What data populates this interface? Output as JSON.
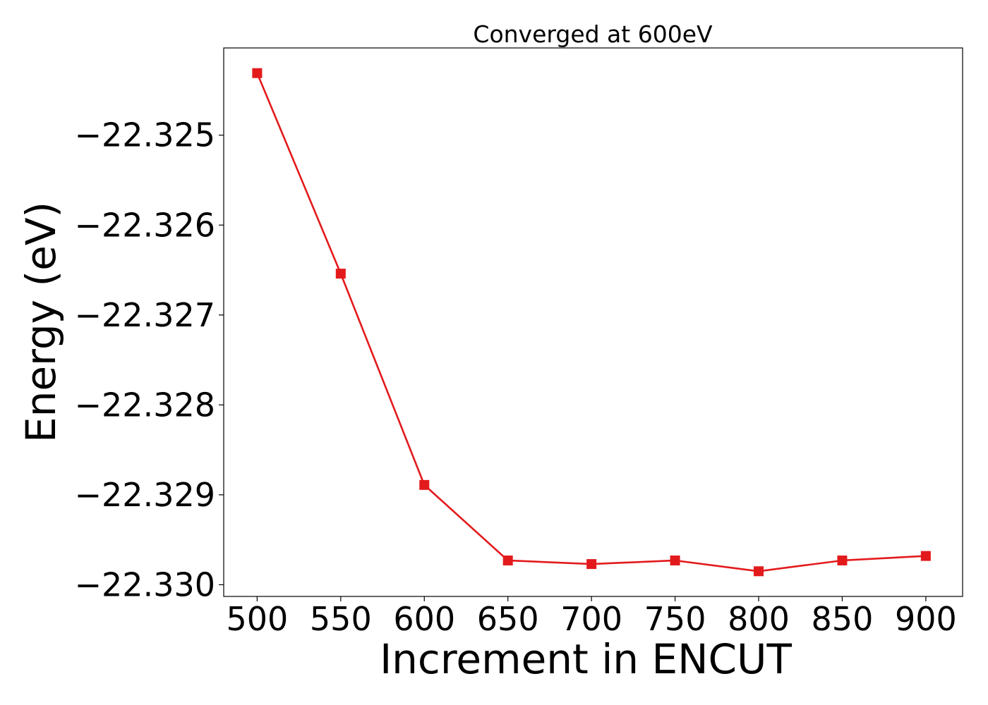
{
  "chart_data": {
    "type": "line",
    "title": "Converged at 600eV",
    "xlabel": "Increment in ENCUT",
    "ylabel": "Energy (eV)",
    "x": [
      500,
      550,
      600,
      650,
      700,
      750,
      800,
      850,
      900
    ],
    "series": [
      {
        "values": [
          -22.32431,
          -22.32654,
          -22.32889,
          -22.32973,
          -22.32977,
          -22.32973,
          -22.32985,
          -22.32973,
          -22.32968
        ],
        "color": "#e31a1c",
        "marker": "square"
      }
    ],
    "xlim": [
      480,
      922
    ],
    "ylim": [
      -22.33013,
      -22.32403
    ],
    "xticks": [
      500,
      550,
      600,
      650,
      700,
      750,
      800,
      850,
      900
    ],
    "xtick_labels": [
      "500",
      "550",
      "600",
      "650",
      "700",
      "750",
      "800",
      "850",
      "900"
    ],
    "yticks": [
      -22.325,
      -22.326,
      -22.327,
      -22.328,
      -22.329,
      -22.33
    ],
    "ytick_labels": [
      "−22.325",
      "−22.326",
      "−22.327",
      "−22.328",
      "−22.329",
      "−22.330"
    ],
    "grid": false,
    "legend": "none"
  }
}
